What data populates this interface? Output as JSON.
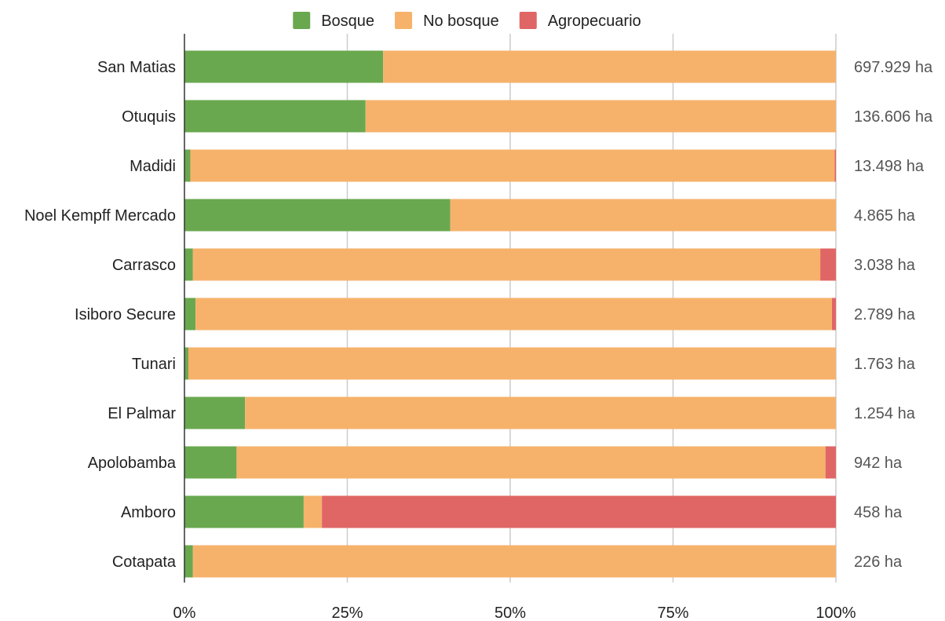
{
  "chart_data": {
    "type": "bar",
    "orientation": "horizontal",
    "stacked": "percent",
    "categories": [
      "San Matias",
      "Otuquis",
      "Madidi",
      "Noel Kempff Mercado",
      "Carrasco",
      "Isiboro Secure",
      "Tunari",
      "El Palmar",
      "Apolobamba",
      "Amboro",
      "Cotapata"
    ],
    "series": [
      {
        "name": "Bosque",
        "color": "#6aa84f",
        "values": [
          30.5,
          27.8,
          0.9,
          40.8,
          1.3,
          1.7,
          0.6,
          9.3,
          8.0,
          18.3,
          1.3
        ]
      },
      {
        "name": "No bosque",
        "color": "#f6b26b",
        "values": [
          69.5,
          72.2,
          98.9,
          59.2,
          96.3,
          97.7,
          99.4,
          90.7,
          90.4,
          2.8,
          98.7
        ]
      },
      {
        "name": "Agropecuario",
        "color": "#e06666",
        "values": [
          0.0,
          0.0,
          0.2,
          0.0,
          2.4,
          0.6,
          0.0,
          0.0,
          1.6,
          78.9,
          0.0
        ]
      }
    ],
    "totals": [
      "697.929 ha",
      "136.606 ha",
      "13.498 ha",
      "4.865 ha",
      "3.038 ha",
      "2.789 ha",
      "1.763 ha",
      "1.254 ha",
      "942 ha",
      "458 ha",
      "226 ha"
    ],
    "xticks": [
      "0%",
      "25%",
      "50%",
      "75%",
      "100%"
    ],
    "xlim": [
      0,
      100
    ],
    "legend_position": "top",
    "grid": true
  }
}
